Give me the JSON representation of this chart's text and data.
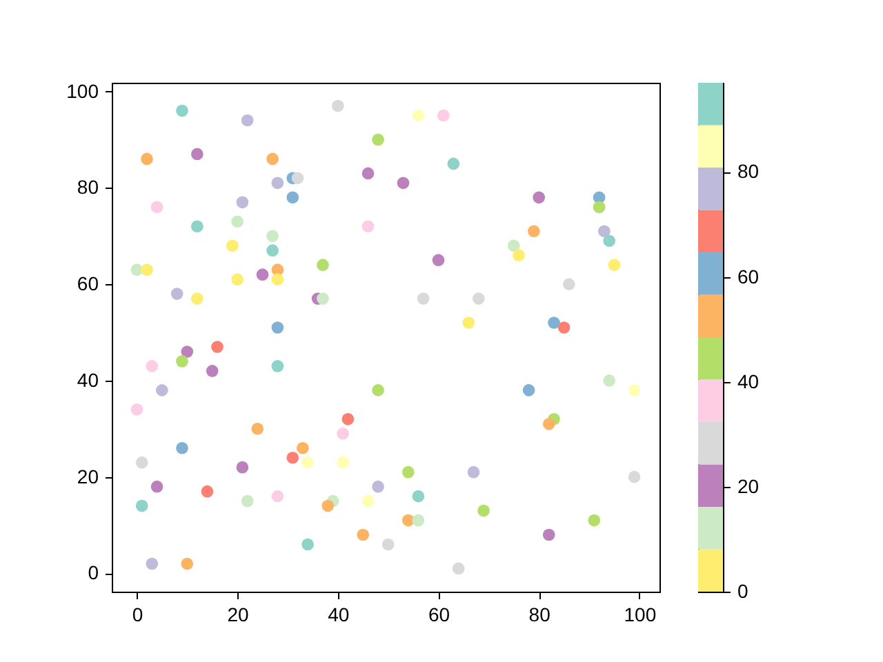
{
  "chart_data": {
    "type": "scatter",
    "x": [
      9,
      22,
      40,
      48,
      2,
      12,
      27,
      28,
      31,
      32,
      31,
      46,
      4,
      21,
      12,
      20,
      27,
      46,
      19,
      27,
      0,
      2,
      37,
      25,
      28,
      28,
      20,
      8,
      12,
      36,
      37,
      28,
      56,
      61,
      63,
      53,
      80,
      92,
      92,
      79,
      93,
      94,
      75,
      76,
      60,
      95,
      86,
      57,
      68,
      66,
      83,
      85,
      16,
      10,
      9,
      3,
      15,
      28,
      5,
      48,
      0,
      42,
      24,
      41,
      9,
      33,
      31,
      34,
      41,
      1,
      21,
      4,
      14,
      22,
      28,
      48,
      39,
      38,
      46,
      1,
      45,
      50,
      34,
      3,
      10,
      78,
      94,
      99,
      83,
      82,
      54,
      67,
      99,
      56,
      69,
      54,
      56,
      91,
      82,
      64
    ],
    "values": [
      96,
      94,
      97,
      90,
      86,
      87,
      86,
      81,
      82,
      82,
      78,
      83,
      76,
      77,
      72,
      73,
      70,
      72,
      68,
      67,
      63,
      63,
      64,
      62,
      63,
      61,
      61,
      58,
      57,
      57,
      57,
      51,
      95,
      95,
      85,
      81,
      78,
      78,
      76,
      71,
      71,
      69,
      68,
      66,
      65,
      64,
      60,
      57,
      57,
      52,
      52,
      51,
      47,
      46,
      44,
      43,
      42,
      43,
      38,
      38,
      34,
      32,
      30,
      29,
      26,
      26,
      24,
      23,
      23,
      23,
      22,
      18,
      17,
      15,
      16,
      18,
      15,
      14,
      15,
      14,
      8,
      6,
      6,
      2,
      2,
      38,
      40,
      38,
      32,
      31,
      21,
      21,
      20,
      16,
      13,
      11,
      11,
      11,
      8,
      1
    ],
    "cvalues": [
      93,
      77,
      28,
      44,
      53,
      20,
      53,
      77,
      61,
      28,
      61,
      20,
      36,
      77,
      93,
      12,
      12,
      36,
      4,
      93,
      12,
      4,
      44,
      20,
      53,
      4,
      4,
      77,
      4,
      20,
      12,
      61,
      85,
      36,
      93,
      20,
      20,
      61,
      44,
      53,
      77,
      93,
      12,
      4,
      20,
      4,
      28,
      28,
      28,
      4,
      61,
      69,
      69,
      20,
      44,
      36,
      20,
      93,
      77,
      44,
      36,
      69,
      53,
      36,
      61,
      53,
      69,
      85,
      85,
      28,
      20,
      20,
      69,
      12,
      36,
      77,
      12,
      53,
      85,
      93,
      53,
      28,
      93,
      77,
      53,
      61,
      12,
      85,
      44,
      53,
      44,
      77,
      28,
      93,
      44,
      53,
      12,
      44,
      20,
      28
    ],
    "colors": [
      "#8dd3c7",
      "#bebada",
      "#d9d9d9",
      "#b3de69",
      "#fdb462",
      "#bc80bd",
      "#fdb462",
      "#bebada",
      "#80b1d3",
      "#d9d9d9",
      "#80b1d3",
      "#bc80bd",
      "#fccde5",
      "#bebada",
      "#8dd3c7",
      "#ccebc5",
      "#ccebc5",
      "#fccde5",
      "#ffed6f",
      "#8dd3c7",
      "#ccebc5",
      "#ffed6f",
      "#b3de69",
      "#bc80bd",
      "#fdb462",
      "#ffed6f",
      "#ffed6f",
      "#bebada",
      "#ffed6f",
      "#bc80bd",
      "#ccebc5",
      "#80b1d3",
      "#ffffb3",
      "#fccde5",
      "#8dd3c7",
      "#bc80bd",
      "#bc80bd",
      "#80b1d3",
      "#b3de69",
      "#fdb462",
      "#bebada",
      "#8dd3c7",
      "#ccebc5",
      "#ffed6f",
      "#bc80bd",
      "#ffed6f",
      "#d9d9d9",
      "#d9d9d9",
      "#d9d9d9",
      "#ffed6f",
      "#80b1d3",
      "#fb8072",
      "#fb8072",
      "#bc80bd",
      "#b3de69",
      "#fccde5",
      "#bc80bd",
      "#8dd3c7",
      "#bebada",
      "#b3de69",
      "#fccde5",
      "#fb8072",
      "#fdb462",
      "#fccde5",
      "#80b1d3",
      "#fdb462",
      "#fb8072",
      "#ffffb3",
      "#ffffb3",
      "#d9d9d9",
      "#bc80bd",
      "#bc80bd",
      "#fb8072",
      "#ccebc5",
      "#fccde5",
      "#bebada",
      "#ccebc5",
      "#fdb462",
      "#ffffb3",
      "#8dd3c7",
      "#fdb462",
      "#d9d9d9",
      "#8dd3c7",
      "#bebada",
      "#fdb462",
      "#80b1d3",
      "#ccebc5",
      "#ffffb3",
      "#b3de69",
      "#fdb462",
      "#b3de69",
      "#bebada",
      "#d9d9d9",
      "#8dd3c7",
      "#b3de69",
      "#fdb462",
      "#ccebc5",
      "#b3de69",
      "#bc80bd",
      "#d9d9d9"
    ],
    "clim": [
      0,
      97
    ],
    "cticks": [
      0,
      20,
      40,
      60,
      80
    ],
    "xlim": [
      -5,
      104
    ],
    "ylim": [
      -3.8,
      101.8
    ],
    "xticks": [
      0,
      20,
      40,
      60,
      80,
      100
    ],
    "yticks": [
      0,
      20,
      40,
      60,
      80,
      100
    ],
    "grid": false,
    "marker": "circle"
  }
}
